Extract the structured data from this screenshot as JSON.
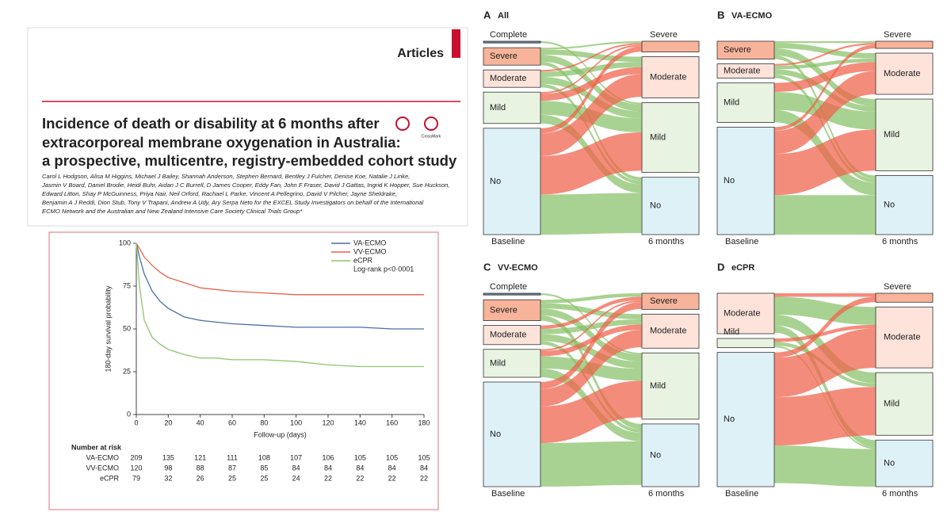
{
  "article": {
    "section": "Articles",
    "title_lines": [
      "Incidence of death or disability at 6 months after",
      "extracorporeal membrane oxygenation in Australia:",
      "a prospective, multicentre, registry-embedded cohort study"
    ],
    "crossmark": "CrossMark",
    "author_lines": [
      "Carol L Hodgson, Alisa M Higgins, Michael J Bailey, Shannah Anderson, Stephen Bernard, Bentley J Fulcher, Denise Koe, Natalie J Linke,",
      "Jasmin V Board, Daniel Brodie, Heidi Buhr, Aidan J C Burrell, D James Cooper, Eddy Fan, John F Fraser, David J Gattas, Ingrid K Hopper, Sue Huckson,",
      "Edward Litton, Shay P McGuinness, Priya Nair, Neil Orford, Rachael L Parke, Vincent A Pellegrino, David V Pilcher, Jayne Sheldrake,",
      "Benjamin A J Reddi, Dion Stub, Tony V Trapani, Andrew A Udy, Ary Serpa Neto for the EXCEL Study Investigators on behalf of the International",
      "ECMO Network and the Australian and New Zealand Intensive Care Society Clinical Trials Group*"
    ]
  },
  "chart_data": [
    {
      "type": "line",
      "y_label": "180-day survival probability",
      "x_label": "Follow-up (days)",
      "annotation": "Log-rank p<0·0001",
      "x": [
        0,
        2,
        5,
        10,
        15,
        20,
        30,
        40,
        50,
        60,
        80,
        100,
        120,
        140,
        160,
        180
      ],
      "series": [
        {
          "name": "VA-ECMO",
          "color": "#4a6fa5",
          "values": [
            100,
            92,
            82,
            72,
            66,
            62,
            57,
            55,
            54,
            53,
            52,
            51,
            51,
            51,
            50,
            50
          ]
        },
        {
          "name": "VV-ECMO",
          "color": "#e8604c",
          "values": [
            100,
            97,
            92,
            87,
            83,
            80,
            77,
            74,
            73,
            72,
            71,
            70,
            70,
            70,
            70,
            70
          ]
        },
        {
          "name": "eCPR",
          "color": "#8cc56e",
          "values": [
            100,
            75,
            55,
            45,
            41,
            38,
            35,
            33,
            33,
            32,
            32,
            31,
            29,
            28,
            28,
            28
          ]
        }
      ],
      "xlim": [
        0,
        180
      ],
      "xticks": [
        0,
        20,
        40,
        60,
        80,
        100,
        120,
        140,
        160,
        180
      ],
      "ylim": [
        0,
        100
      ],
      "yticks": [
        0,
        25,
        50,
        75,
        100
      ],
      "risk_table": {
        "title": "Number at risk",
        "rows": [
          {
            "label": "VA-ECMO",
            "values": [
              209,
              135,
              121,
              111,
              108,
              107,
              106,
              105,
              105,
              105
            ]
          },
          {
            "label": "VV-ECMO",
            "values": [
              120,
              98,
              88,
              87,
              85,
              84,
              84,
              84,
              84,
              84
            ]
          },
          {
            "label": "eCPR",
            "values": [
              79,
              32,
              26,
              25,
              25,
              24,
              22,
              22,
              22,
              22
            ]
          }
        ]
      }
    },
    {
      "type": "sankey",
      "label": "A",
      "title": "All",
      "baseline_label": "Baseline",
      "outcome_label": "6 months",
      "baseline": {
        "categories": [
          "Complete",
          "Severe",
          "Moderate",
          "Mild",
          "No"
        ],
        "values": [
          1,
          10,
          10,
          18,
          61
        ]
      },
      "outcome": {
        "categories": [
          "Severe",
          "Moderate",
          "Mild",
          "No"
        ],
        "values": [
          6,
          23,
          39,
          32
        ]
      },
      "flows": [
        [
          0,
          0,
          1,
          0
        ],
        [
          1,
          3,
          4,
          2
        ],
        [
          1,
          3,
          4,
          2
        ],
        [
          1,
          4,
          8,
          5
        ],
        [
          3,
          13,
          22,
          23
        ]
      ]
    },
    {
      "type": "sankey",
      "label": "B",
      "title": "VA-ECMO",
      "baseline_label": "Baseline",
      "outcome_label": "6 months",
      "baseline": {
        "categories": [
          "Severe",
          "Moderate",
          "Mild",
          "No"
        ],
        "values": [
          10,
          8,
          22,
          60
        ]
      },
      "outcome": {
        "categories": [
          "Severe",
          "Moderate",
          "Mild",
          "No"
        ],
        "values": [
          4,
          23,
          40,
          33
        ]
      },
      "flows": [
        [
          1,
          3,
          4,
          2
        ],
        [
          1,
          2,
          3,
          2
        ],
        [
          0,
          5,
          10,
          7
        ],
        [
          2,
          13,
          23,
          22
        ]
      ]
    },
    {
      "type": "sankey",
      "label": "C",
      "title": "VV-ECMO",
      "baseline_label": "Baseline",
      "outcome_label": "6 months",
      "baseline": {
        "categories": [
          "Complete",
          "Severe",
          "Moderate",
          "Mild",
          "No"
        ],
        "values": [
          1,
          12,
          11,
          16,
          60
        ]
      },
      "outcome": {
        "categories": [
          "Severe",
          "Moderate",
          "Mild",
          "No"
        ],
        "values": [
          9,
          19,
          37,
          35
        ]
      },
      "flows": [
        [
          0,
          0,
          1,
          0
        ],
        [
          2,
          3,
          4,
          3
        ],
        [
          2,
          3,
          4,
          2
        ],
        [
          1,
          3,
          7,
          5
        ],
        [
          4,
          10,
          21,
          25
        ]
      ]
    },
    {
      "type": "sankey",
      "label": "D",
      "title": "eCPR",
      "baseline_label": "Baseline",
      "outcome_label": "6 months",
      "baseline": {
        "categories": [
          "Moderate",
          "Mild",
          "No"
        ],
        "values": [
          22,
          5,
          73
        ]
      },
      "outcome": {
        "categories": [
          "Severe",
          "Moderate",
          "Mild",
          "No"
        ],
        "values": [
          5,
          34,
          35,
          26
        ]
      },
      "flows": [
        [
          2,
          10,
          6,
          4
        ],
        [
          0,
          2,
          2,
          1
        ],
        [
          3,
          22,
          27,
          21
        ]
      ]
    }
  ],
  "sankey_colors": {
    "node": {
      "Complete": "#6d7f9e",
      "Severe": "#f7b49a",
      "Moderate": "#fde3da",
      "Mild": "#e9f3e1",
      "No": "#def1f7"
    },
    "worse": "#f0604a",
    "better": "#86c167"
  }
}
